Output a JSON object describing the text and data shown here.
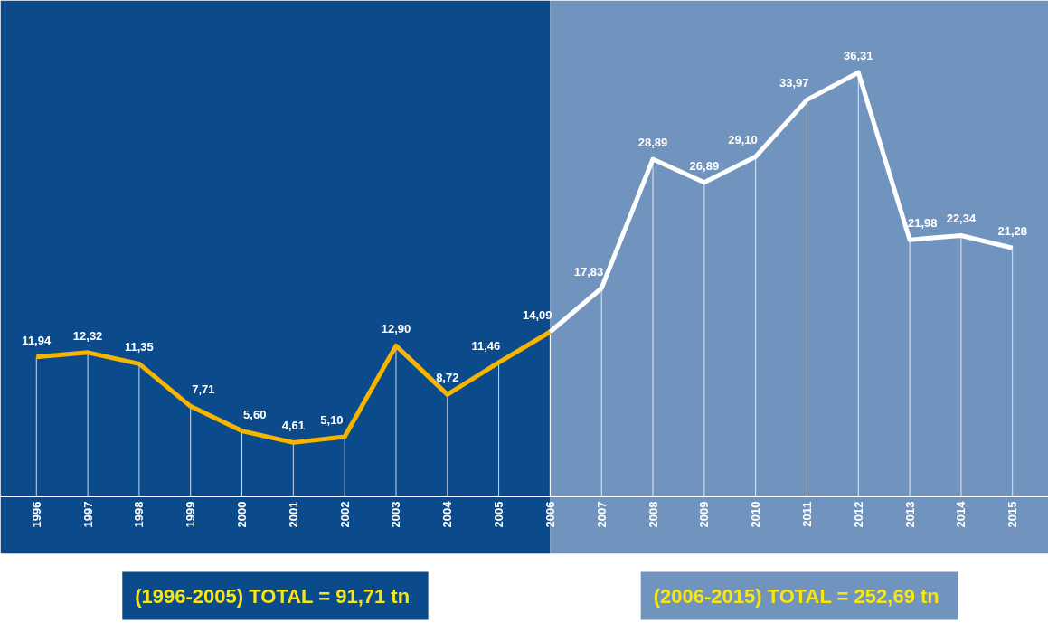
{
  "chart_data": {
    "type": "line",
    "categories": [
      "1996",
      "1997",
      "1998",
      "1999",
      "2000",
      "2001",
      "2002",
      "2003",
      "2004",
      "2005",
      "2006",
      "2007",
      "2008",
      "2009",
      "2010",
      "2011",
      "2012",
      "2013",
      "2014",
      "2015"
    ],
    "series": [
      {
        "color": "#f7b500",
        "values": [
          11.94,
          12.32,
          11.35,
          7.71,
          5.6,
          4.61,
          5.1,
          12.9,
          8.72,
          11.46,
          14.09,
          null,
          null,
          null,
          null,
          null,
          null,
          null,
          null,
          null
        ],
        "value_labels": [
          "11,94",
          "12,32",
          "11,35",
          "7,71",
          "5,60",
          "4,61",
          "5,10",
          "12,90",
          "8,72",
          "11,46",
          "14,09",
          null,
          null,
          null,
          null,
          null,
          null,
          null,
          null,
          null
        ]
      },
      {
        "color": "#ffffff",
        "values": [
          null,
          null,
          null,
          null,
          null,
          null,
          null,
          null,
          null,
          null,
          14.09,
          17.83,
          28.89,
          26.89,
          29.1,
          33.97,
          36.31,
          21.98,
          22.34,
          21.28
        ],
        "value_labels": [
          null,
          null,
          null,
          null,
          null,
          null,
          null,
          null,
          null,
          null,
          null,
          "17,83",
          "28,89",
          "26,89",
          "29,10",
          "33,97",
          "36,31",
          "21,98",
          "22,34",
          "21,28"
        ]
      }
    ],
    "bands": [
      {
        "axis": "x",
        "from": "1996",
        "to": "2006",
        "color": "#0b4a8b",
        "label": "(1996-2005) TOTAL = 91,71  tn"
      },
      {
        "axis": "x",
        "from": "2006",
        "to": "2015",
        "color": "#7094bd",
        "label": "(2006-2015) TOTAL = 252,69  tn"
      }
    ],
    "marker": "none",
    "grid": "x"
  }
}
